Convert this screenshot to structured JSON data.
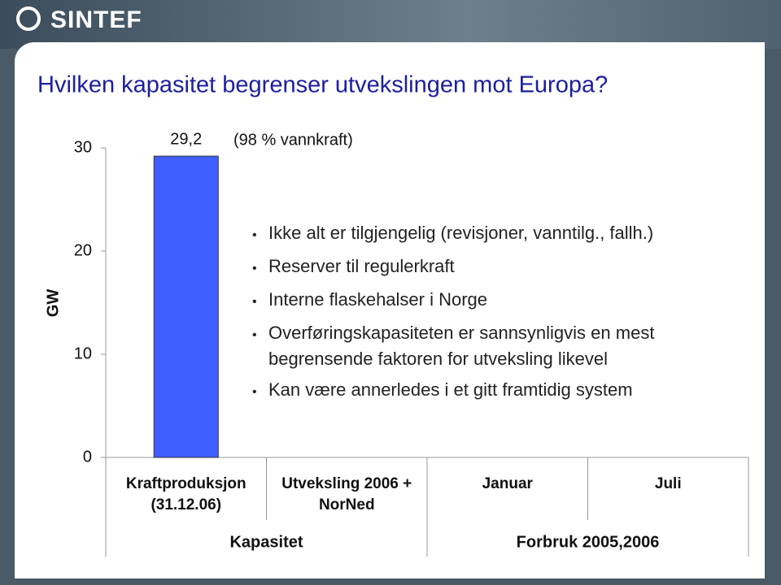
{
  "header": {
    "logo": "SINTEF"
  },
  "chart_data": {
    "type": "bar",
    "title": "Hvilken kapasitet begrenser utvekslingen mot Europa?",
    "ylabel": "GW",
    "categories": [
      "Kraftproduksjon (31.12.06)",
      "Utveksling 2006 + NorNed",
      "Januar",
      "Juli"
    ],
    "values": [
      29.2,
      null,
      null,
      null
    ],
    "value_labels": [
      "29,2",
      null,
      null,
      null
    ],
    "color": "#3f5fff",
    "groups": [
      {
        "label": "Kapasitet",
        "count": 2
      },
      {
        "label": "Forbruk 2005,2006",
        "count": 2
      }
    ],
    "annotation": "(98 % vannkraft)",
    "bullets": [
      "Ikke alt er tilgjengelig (revisjoner, vanntilg., fallh.)",
      "Reserver til regulerkraft",
      "Interne flaskehalser i Norge",
      "Overføringskapasiteten er sannsynligvis en mest begrensende faktoren for utveksling likevel",
      "Kan være annerledes i et gitt framtidig system"
    ],
    "ylim": [
      0,
      30
    ],
    "yticks": [
      0,
      10,
      20,
      30
    ]
  }
}
